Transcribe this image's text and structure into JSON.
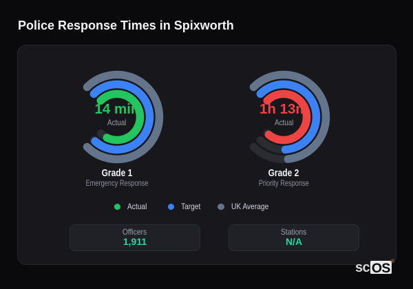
{
  "title": "Police Response Times in Spixworth",
  "legend": {
    "items": [
      {
        "label": "Actual",
        "color": "#22c55e"
      },
      {
        "label": "Target",
        "color": "#3b82f6"
      },
      {
        "label": "UK Average",
        "color": "#64748b"
      }
    ]
  },
  "stats": [
    {
      "label": "Officers",
      "value": "1,911"
    },
    {
      "label": "Stations",
      "value": "N/A"
    }
  ],
  "logo": {
    "prefix": "sc",
    "block": "OS",
    "mark": "®"
  },
  "colors": {
    "actual_grade1": "#22c55e",
    "actual_grade2": "#ef4444",
    "target": "#3b82f6",
    "uk_average": "#64748b",
    "ring_track": "#2a2c32",
    "stat_value": "#2fd49e"
  },
  "chart_data": {
    "type": "gauge",
    "max_sweep_deg": 270,
    "start_angle_deg": -45,
    "ring_radii": [
      61.5,
      47.5,
      33.5
    ],
    "ring_stroke_width": 11.5,
    "gauges": [
      {
        "title": "Grade 1",
        "subtitle": "Emergency Response",
        "value": "14 min",
        "value_sub": "Actual",
        "value_color": "#22c55e",
        "series": [
          {
            "name": "UK Average",
            "color": "#64748b",
            "sweep_deg": 270
          },
          {
            "name": "Target",
            "color": "#3b82f6",
            "sweep_deg": 267
          },
          {
            "name": "Actual",
            "color": "#22c55e",
            "sweep_deg": 251
          }
        ]
      },
      {
        "title": "Grade 2",
        "subtitle": "Priority Response",
        "value": "1h 13m",
        "value_sub": "Actual",
        "value_color": "#ef4444",
        "series": [
          {
            "name": "UK Average",
            "color": "#64748b",
            "sweep_deg": 219
          },
          {
            "name": "Target",
            "color": "#3b82f6",
            "sweep_deg": 222
          },
          {
            "name": "Actual",
            "color": "#ef4444",
            "sweep_deg": 265
          }
        ]
      }
    ],
    "legend": [
      "Actual",
      "Target",
      "UK Average"
    ],
    "stats": [
      {
        "label": "Officers",
        "value": "1,911"
      },
      {
        "label": "Stations",
        "value": "N/A"
      }
    ]
  }
}
